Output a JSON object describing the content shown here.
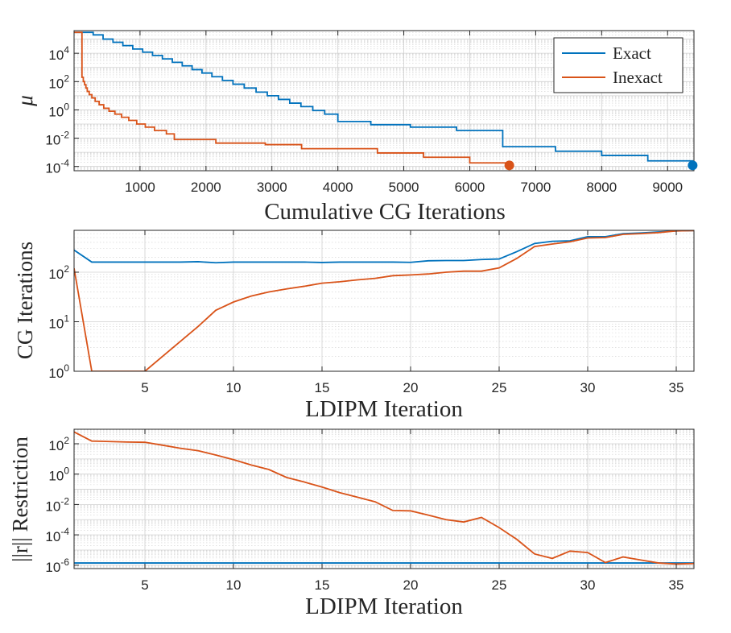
{
  "colors": {
    "exact": "#0072BD",
    "inexact": "#D95319",
    "axis": "#262626",
    "grid": "#d0d0d0"
  },
  "chart_data": [
    {
      "type": "line",
      "yscale": "log",
      "xlabel": "Cumulative CG Iterations",
      "ylabel": "μ",
      "xlim": [
        0,
        9400
      ],
      "ylim": [
        5e-05,
        400000
      ],
      "grid": "on",
      "legend": "top-right",
      "xticks": [
        1000,
        2000,
        3000,
        4000,
        5000,
        6000,
        7000,
        8000,
        9000
      ],
      "yticks": [
        {
          "base": "10",
          "exp": "4"
        },
        {
          "base": "10",
          "exp": "2"
        },
        {
          "base": "10",
          "exp": "0"
        },
        {
          "base": "10",
          "exp": "-2"
        },
        {
          "base": "10",
          "exp": "-4"
        }
      ],
      "series": [
        {
          "name": "Exact",
          "x": [
            0,
            290,
            440,
            590,
            740,
            890,
            1040,
            1190,
            1340,
            1490,
            1640,
            1790,
            1940,
            2090,
            2250,
            2410,
            2580,
            2760,
            2930,
            3100,
            3270,
            3440,
            3620,
            3800,
            4000,
            4500,
            5100,
            5800,
            6500,
            7300,
            8000,
            8700,
            9380
          ],
          "y": [
            300000,
            200000,
            100000,
            60000,
            35000,
            20000,
            12000,
            7000,
            4000,
            2300,
            1300,
            700,
            400,
            220,
            120,
            65,
            35,
            18,
            10,
            5.5,
            3,
            1.7,
            0.9,
            0.5,
            0.15,
            0.09,
            0.06,
            0.035,
            0.0025,
            0.0012,
            0.0006,
            0.00025,
            0.00012
          ],
          "end_marker": true
        },
        {
          "name": "Inexact",
          "x": [
            0,
            120,
            140,
            160,
            180,
            200,
            230,
            270,
            320,
            380,
            450,
            530,
            620,
            720,
            830,
            950,
            1080,
            1220,
            1400,
            1520,
            2150,
            2900,
            3450,
            4600,
            5300,
            6000,
            6600
          ],
          "y": [
            300000,
            200,
            100,
            60,
            35,
            20,
            12,
            7,
            4,
            2.3,
            1.3,
            0.8,
            0.5,
            0.3,
            0.18,
            0.1,
            0.06,
            0.035,
            0.02,
            0.008,
            0.0045,
            0.0035,
            0.0018,
            0.0009,
            0.00045,
            0.00018,
            0.00012
          ],
          "end_marker": true
        }
      ]
    },
    {
      "type": "line",
      "yscale": "log",
      "xlabel": "LDIPM Iteration",
      "ylabel": "CG Iterations",
      "xlim": [
        1,
        36
      ],
      "ylim": [
        1,
        700
      ],
      "grid": "on",
      "xticks": [
        5,
        10,
        15,
        20,
        25,
        30,
        35
      ],
      "yticks": [
        {
          "base": "10",
          "exp": "2"
        },
        {
          "base": "10",
          "exp": "1"
        },
        {
          "base": "10",
          "exp": "0"
        }
      ],
      "series": [
        {
          "name": "Exact",
          "x": [
            1,
            2,
            3,
            4,
            5,
            6,
            7,
            8,
            9,
            10,
            11,
            12,
            13,
            14,
            15,
            16,
            17,
            18,
            19,
            20,
            21,
            22,
            23,
            24,
            25,
            26,
            27,
            28,
            29,
            30,
            31,
            32,
            33,
            34,
            35,
            36
          ],
          "y": [
            280,
            160,
            160,
            160,
            160,
            160,
            160,
            163,
            155,
            160,
            160,
            160,
            160,
            160,
            157,
            160,
            160,
            160,
            160,
            158,
            170,
            172,
            172,
            180,
            185,
            260,
            380,
            420,
            430,
            520,
            520,
            600,
            620,
            650,
            680,
            690
          ]
        },
        {
          "name": "Inexact",
          "x": [
            1,
            2,
            3,
            4,
            5,
            6,
            7,
            8,
            9,
            10,
            11,
            12,
            13,
            14,
            15,
            16,
            17,
            18,
            19,
            20,
            21,
            22,
            23,
            24,
            25,
            26,
            27,
            28,
            29,
            30,
            31,
            32,
            33,
            34,
            35,
            36
          ],
          "y": [
            120,
            1,
            1,
            1,
            1,
            2,
            4,
            8,
            17,
            25,
            33,
            40,
            46,
            52,
            60,
            64,
            70,
            75,
            85,
            88,
            92,
            100,
            105,
            105,
            122,
            190,
            330,
            370,
            410,
            490,
            500,
            580,
            600,
            630,
            680,
            690
          ]
        }
      ]
    },
    {
      "type": "line",
      "yscale": "log",
      "xlabel": "LDIPM Iteration",
      "ylabel": "||r|| Restriction",
      "xlim": [
        1,
        36
      ],
      "ylim": [
        6e-07,
        900
      ],
      "grid": "on",
      "xticks": [
        5,
        10,
        15,
        20,
        25,
        30,
        35
      ],
      "yticks": [
        {
          "base": "10",
          "exp": "2"
        },
        {
          "base": "10",
          "exp": "0"
        },
        {
          "base": "10",
          "exp": "-2"
        },
        {
          "base": "10",
          "exp": "-4"
        },
        {
          "base": "10",
          "exp": "-6"
        }
      ],
      "series": [
        {
          "name": "Exact",
          "x": [
            1,
            36
          ],
          "y": [
            1.4e-06,
            1.4e-06
          ]
        },
        {
          "name": "Inexact",
          "x": [
            1,
            2,
            3,
            4,
            5,
            6,
            7,
            8,
            9,
            10,
            11,
            12,
            13,
            14,
            15,
            16,
            17,
            18,
            19,
            20,
            21,
            22,
            23,
            24,
            25,
            26,
            27,
            28,
            29,
            30,
            31,
            32,
            33,
            34,
            35,
            36
          ],
          "y": [
            600,
            150,
            140,
            130,
            125,
            80,
            50,
            35,
            18,
            9,
            4,
            2,
            0.6,
            0.3,
            0.14,
            0.06,
            0.03,
            0.015,
            0.004,
            0.0038,
            0.002,
            0.001,
            0.0007,
            0.0014,
            0.0003,
            5e-05,
            5.5e-06,
            2.8e-06,
            8.5e-06,
            6.8e-06,
            1.5e-06,
            3.5e-06,
            2.2e-06,
            1.4e-06,
            1.2e-06,
            1.3e-06
          ]
        }
      ]
    }
  ]
}
